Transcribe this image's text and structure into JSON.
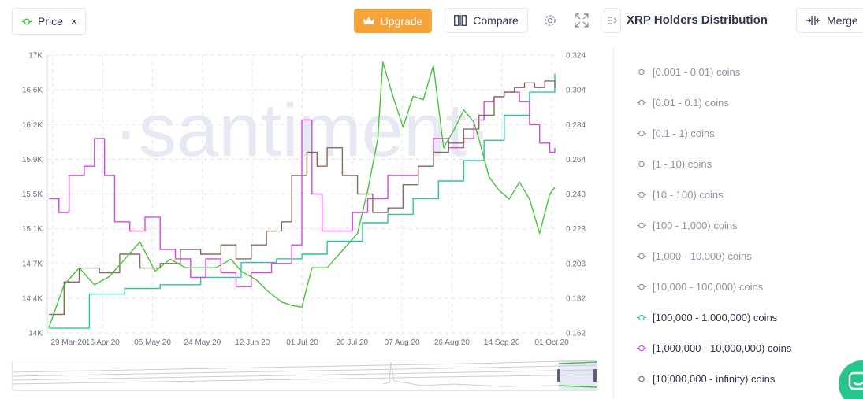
{
  "toolbar": {
    "price_label": "Price",
    "price_remove": "×",
    "upgrade_label": "Upgrade",
    "compare_label": "Compare"
  },
  "sidebar": {
    "title": "XRP Holders Distribution",
    "merge_label": "Merge",
    "items": [
      {
        "label": "[0.001 - 0.01) coins",
        "active": false,
        "color": "#8f94a7"
      },
      {
        "label": "[0.01 - 0.1) coins",
        "active": false,
        "color": "#8f94a7"
      },
      {
        "label": "[0.1 - 1) coins",
        "active": false,
        "color": "#8f94a7"
      },
      {
        "label": "[1 - 10) coins",
        "active": false,
        "color": "#8f94a7"
      },
      {
        "label": "[10 - 100) coins",
        "active": false,
        "color": "#8f94a7"
      },
      {
        "label": "[100 - 1,000) coins",
        "active": false,
        "color": "#8f94a7"
      },
      {
        "label": "[1,000 - 10,000) coins",
        "active": false,
        "color": "#8f94a7"
      },
      {
        "label": "[10,000 - 100,000) coins",
        "active": false,
        "color": "#8f94a7"
      },
      {
        "label": "[100,000 - 1,000,000) coins",
        "active": true,
        "color": "#26c6a6"
      },
      {
        "label": "[1,000,000 - 10,000,000) coins",
        "active": true,
        "color": "#d945e3"
      },
      {
        "label": "[10,000,000 - infinity) coins",
        "active": true,
        "color": "#8b6b5c"
      }
    ]
  },
  "colors": {
    "price": "#48c43c",
    "upgrade": "#f6a33a",
    "grid": "#e3e6ee",
    "watermark": "#e6e9f4"
  },
  "chart_data": {
    "type": "line",
    "watermark": "·santiment·",
    "y_left_ticks": [
      "17K",
      "16.6K",
      "16.2K",
      "15.9K",
      "15.5K",
      "15.1K",
      "14.7K",
      "14.4K",
      "14K"
    ],
    "y_right_ticks": [
      "0.324",
      "0.304",
      "0.284",
      "0.264",
      "0.243",
      "0.223",
      "0.203",
      "0.182",
      "0.162"
    ],
    "x_ticks": [
      "29 Mar 20",
      "16 Apr 20",
      "05 May 20",
      "24 May 20",
      "12 Jun 20",
      "01 Jul 20",
      "20 Jul 20",
      "07 Aug 20",
      "26 Aug 20",
      "14 Sep 20",
      "01 Oct 20"
    ],
    "left_ylim": [
      14000,
      17000
    ],
    "right_ylim": [
      0.162,
      0.324
    ],
    "series": [
      {
        "name": "[100,000 - 1,000,000) coins",
        "axis": "left",
        "color": "#26c6a6",
        "x": [
          0,
          0.08,
          0.15,
          0.22,
          0.3,
          0.38,
          0.45,
          0.5,
          0.55,
          0.62,
          0.67,
          0.72,
          0.77,
          0.82,
          0.86,
          0.9,
          0.95,
          1.0
        ],
        "y": [
          14050,
          14420,
          14480,
          14520,
          14600,
          14760,
          14800,
          14850,
          14990,
          15190,
          15280,
          15450,
          15640,
          15860,
          16080,
          16350,
          16600,
          16800
        ]
      },
      {
        "name": "[1,000,000 - 10,000,000) coins",
        "axis": "left",
        "color": "#d945e3",
        "x": [
          0,
          0.02,
          0.04,
          0.07,
          0.09,
          0.11,
          0.13,
          0.16,
          0.19,
          0.22,
          0.25,
          0.28,
          0.31,
          0.34,
          0.37,
          0.4,
          0.44,
          0.48,
          0.5,
          0.52,
          0.54,
          0.57,
          0.6,
          0.63,
          0.67,
          0.7,
          0.73,
          0.76,
          0.79,
          0.82,
          0.84,
          0.86,
          0.88,
          0.9,
          0.93,
          0.95,
          0.97,
          0.99,
          1.0
        ],
        "y": [
          15450,
          15300,
          15700,
          15800,
          16100,
          15700,
          15200,
          15100,
          15250,
          14900,
          14800,
          14600,
          14800,
          14650,
          14500,
          14650,
          14750,
          14950,
          16300,
          15500,
          15100,
          15100,
          15300,
          15450,
          15700,
          15700,
          15800,
          16100,
          16000,
          16100,
          16300,
          16500,
          16550,
          16600,
          16500,
          16250,
          16050,
          15950,
          16000
        ]
      },
      {
        "name": "[10,000,000 - infinity) coins",
        "axis": "left",
        "color": "#8b6b5c",
        "x": [
          0,
          0.03,
          0.06,
          0.1,
          0.14,
          0.18,
          0.22,
          0.26,
          0.3,
          0.34,
          0.37,
          0.4,
          0.43,
          0.46,
          0.48,
          0.51,
          0.53,
          0.55,
          0.58,
          0.61,
          0.64,
          0.67,
          0.7,
          0.73,
          0.76,
          0.79,
          0.82,
          0.85,
          0.88,
          0.9,
          0.92,
          0.94,
          0.96,
          0.98,
          1.0
        ],
        "y": [
          14200,
          14550,
          14700,
          14650,
          14850,
          14700,
          14750,
          14900,
          14850,
          14950,
          14800,
          14950,
          15100,
          15200,
          15700,
          15950,
          15800,
          16000,
          15700,
          15500,
          15300,
          15350,
          15600,
          15800,
          15950,
          16050,
          16200,
          16350,
          16550,
          16600,
          16650,
          16700,
          16650,
          16720,
          16650
        ]
      },
      {
        "name": "Price",
        "axis": "right",
        "color": "#48c43c",
        "x": [
          0,
          0.03,
          0.06,
          0.09,
          0.12,
          0.15,
          0.18,
          0.21,
          0.24,
          0.27,
          0.3,
          0.33,
          0.36,
          0.38,
          0.41,
          0.43,
          0.46,
          0.48,
          0.5,
          0.52,
          0.55,
          0.58,
          0.61,
          0.63,
          0.65,
          0.66,
          0.68,
          0.7,
          0.72,
          0.74,
          0.76,
          0.78,
          0.8,
          0.82,
          0.84,
          0.85,
          0.87,
          0.89,
          0.91,
          0.93,
          0.95,
          0.97,
          0.99,
          1.0
        ],
        "y": [
          0.165,
          0.19,
          0.2,
          0.19,
          0.195,
          0.205,
          0.215,
          0.198,
          0.205,
          0.2,
          0.2,
          0.2,
          0.205,
          0.198,
          0.193,
          0.187,
          0.18,
          0.178,
          0.177,
          0.2,
          0.2,
          0.21,
          0.22,
          0.245,
          0.275,
          0.32,
          0.3,
          0.282,
          0.3,
          0.298,
          0.318,
          0.27,
          0.28,
          0.292,
          0.285,
          0.275,
          0.253,
          0.245,
          0.24,
          0.25,
          0.24,
          0.22,
          0.243,
          0.247
        ]
      }
    ]
  }
}
